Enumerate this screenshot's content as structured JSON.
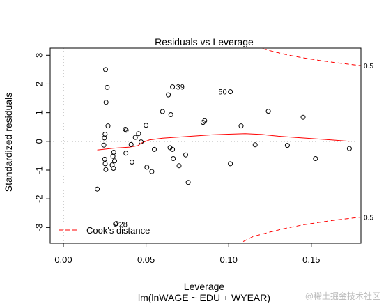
{
  "chart_data": {
    "type": "scatter",
    "title": "Residuals vs Leverage",
    "xlabel": "Leverage",
    "subtitle": "lm(lnWAGE ~ EDU + WYEAR)",
    "ylabel": "Standardized residuals",
    "xlim": [
      -0.008,
      0.18
    ],
    "ylim": [
      -3.55,
      3.25
    ],
    "x_ticks": [
      0.0,
      0.05,
      0.1,
      0.15
    ],
    "x_tick_labels": [
      "0.00",
      "0.05",
      "0.10",
      "0.15"
    ],
    "y_ticks": [
      -3,
      -2,
      -1,
      0,
      1,
      2,
      3
    ],
    "y_tick_labels": [
      "-3",
      "-2",
      "-1",
      "0",
      "1",
      "2",
      "3"
    ],
    "grid": false,
    "reference_lines": {
      "x": 0,
      "y": 0,
      "style": "dotted gray"
    },
    "points": [
      {
        "x": 0.0205,
        "y": -1.66
      },
      {
        "x": 0.0245,
        "y": -0.13
      },
      {
        "x": 0.0248,
        "y": 0.12
      },
      {
        "x": 0.0252,
        "y": 0.25
      },
      {
        "x": 0.0255,
        "y": 2.5
      },
      {
        "x": 0.0258,
        "y": 1.36
      },
      {
        "x": 0.0265,
        "y": 1.88
      },
      {
        "x": 0.027,
        "y": 0.54
      },
      {
        "x": 0.025,
        "y": -0.62
      },
      {
        "x": 0.0253,
        "y": -0.78
      },
      {
        "x": 0.0257,
        "y": -0.98
      },
      {
        "x": 0.0295,
        "y": -0.82
      },
      {
        "x": 0.03,
        "y": -0.52
      },
      {
        "x": 0.0305,
        "y": -0.38
      },
      {
        "x": 0.031,
        "y": -0.68
      },
      {
        "x": 0.0303,
        "y": -0.94
      },
      {
        "x": 0.032,
        "y": -2.86
      },
      {
        "x": 0.0375,
        "y": 0.42
      },
      {
        "x": 0.038,
        "y": 0.39
      },
      {
        "x": 0.0378,
        "y": -0.41
      },
      {
        "x": 0.041,
        "y": -0.11
      },
      {
        "x": 0.0415,
        "y": -0.72
      },
      {
        "x": 0.0435,
        "y": 0.14
      },
      {
        "x": 0.0455,
        "y": 0.27
      },
      {
        "x": 0.047,
        "y": -0.02
      },
      {
        "x": 0.05,
        "y": 0.56
      },
      {
        "x": 0.0505,
        "y": -0.9
      },
      {
        "x": 0.0535,
        "y": -1.05
      },
      {
        "x": 0.055,
        "y": -0.28
      },
      {
        "x": 0.06,
        "y": 1.04
      },
      {
        "x": 0.0635,
        "y": 1.62
      },
      {
        "x": 0.065,
        "y": 0.93
      },
      {
        "x": 0.0645,
        "y": -0.22
      },
      {
        "x": 0.066,
        "y": -0.28
      },
      {
        "x": 0.0665,
        "y": -0.6
      },
      {
        "x": 0.07,
        "y": -0.85
      },
      {
        "x": 0.074,
        "y": -0.47
      },
      {
        "x": 0.0755,
        "y": -1.43
      },
      {
        "x": 0.0845,
        "y": 0.66
      },
      {
        "x": 0.0855,
        "y": 0.72
      },
      {
        "x": 0.101,
        "y": -0.78
      },
      {
        "x": 0.1075,
        "y": 0.54
      },
      {
        "x": 0.116,
        "y": -0.12
      },
      {
        "x": 0.124,
        "y": 1.05
      },
      {
        "x": 0.1355,
        "y": -0.14
      },
      {
        "x": 0.145,
        "y": 0.84
      },
      {
        "x": 0.1525,
        "y": -0.6
      },
      {
        "x": 0.173,
        "y": -0.25
      }
    ],
    "labeled_points": [
      {
        "x": 0.066,
        "y": 1.9,
        "label": "39"
      },
      {
        "x": 0.101,
        "y": 1.73,
        "label": "50"
      },
      {
        "x": 0.0315,
        "y": -2.88,
        "label": "28"
      }
    ],
    "smooth_line": {
      "color": "#ff0000",
      "x": [
        0.0205,
        0.03,
        0.04,
        0.045,
        0.0475,
        0.052,
        0.06,
        0.07,
        0.08,
        0.09,
        0.1,
        0.11,
        0.12,
        0.13,
        0.14,
        0.15,
        0.16,
        0.173
      ],
      "y": [
        -0.3,
        -0.24,
        -0.2,
        -0.15,
        -0.05,
        0.05,
        0.11,
        0.15,
        0.19,
        0.23,
        0.25,
        0.27,
        0.24,
        0.18,
        0.14,
        0.1,
        0.06,
        0.0
      ]
    },
    "cooks_distance": {
      "color": "#ff0000",
      "level_label": "0.5",
      "upper_x": [
        0.105,
        0.115,
        0.125,
        0.135,
        0.145,
        0.155,
        0.165,
        0.18
      ],
      "upper_y": [
        3.6,
        3.31,
        3.16,
        3.02,
        2.91,
        2.82,
        2.74,
        2.64
      ],
      "lower_x": [
        0.105,
        0.115,
        0.125,
        0.135,
        0.145,
        0.155,
        0.165,
        0.18
      ],
      "lower_y": [
        -3.6,
        -3.31,
        -3.16,
        -3.02,
        -2.91,
        -2.82,
        -2.74,
        -2.64
      ]
    },
    "legend": {
      "label": "Cook's distance",
      "position": "bottom-left",
      "style": "red dashed"
    }
  },
  "watermark": "@稀土掘金技术社区"
}
